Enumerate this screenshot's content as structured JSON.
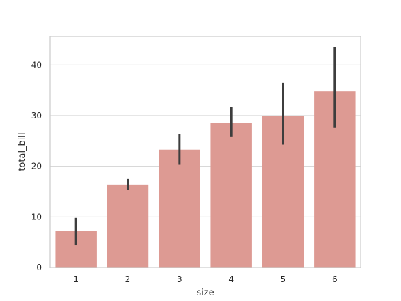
{
  "chart_data": {
    "type": "bar",
    "xlabel": "size",
    "ylabel": "total_bill",
    "categories": [
      "1",
      "2",
      "3",
      "4",
      "5",
      "6"
    ],
    "values": [
      7.2,
      16.4,
      23.3,
      28.6,
      30.0,
      34.8
    ],
    "error_bars": [
      {
        "low": 4.4,
        "high": 9.8
      },
      {
        "low": 15.4,
        "high": 17.5
      },
      {
        "low": 20.3,
        "high": 26.4
      },
      {
        "low": 25.9,
        "high": 31.7
      },
      {
        "low": 24.3,
        "high": 36.5
      },
      {
        "low": 27.7,
        "high": 43.6
      }
    ],
    "ylim": [
      0,
      45.7
    ],
    "yticks": [
      0,
      10,
      20,
      30,
      40
    ],
    "grid": "horizontal",
    "bar_color": "#DD9A93",
    "errorbar_color": "#3d3d3d",
    "frame_color": "#cccccc",
    "grid_color": "#cccccc"
  }
}
